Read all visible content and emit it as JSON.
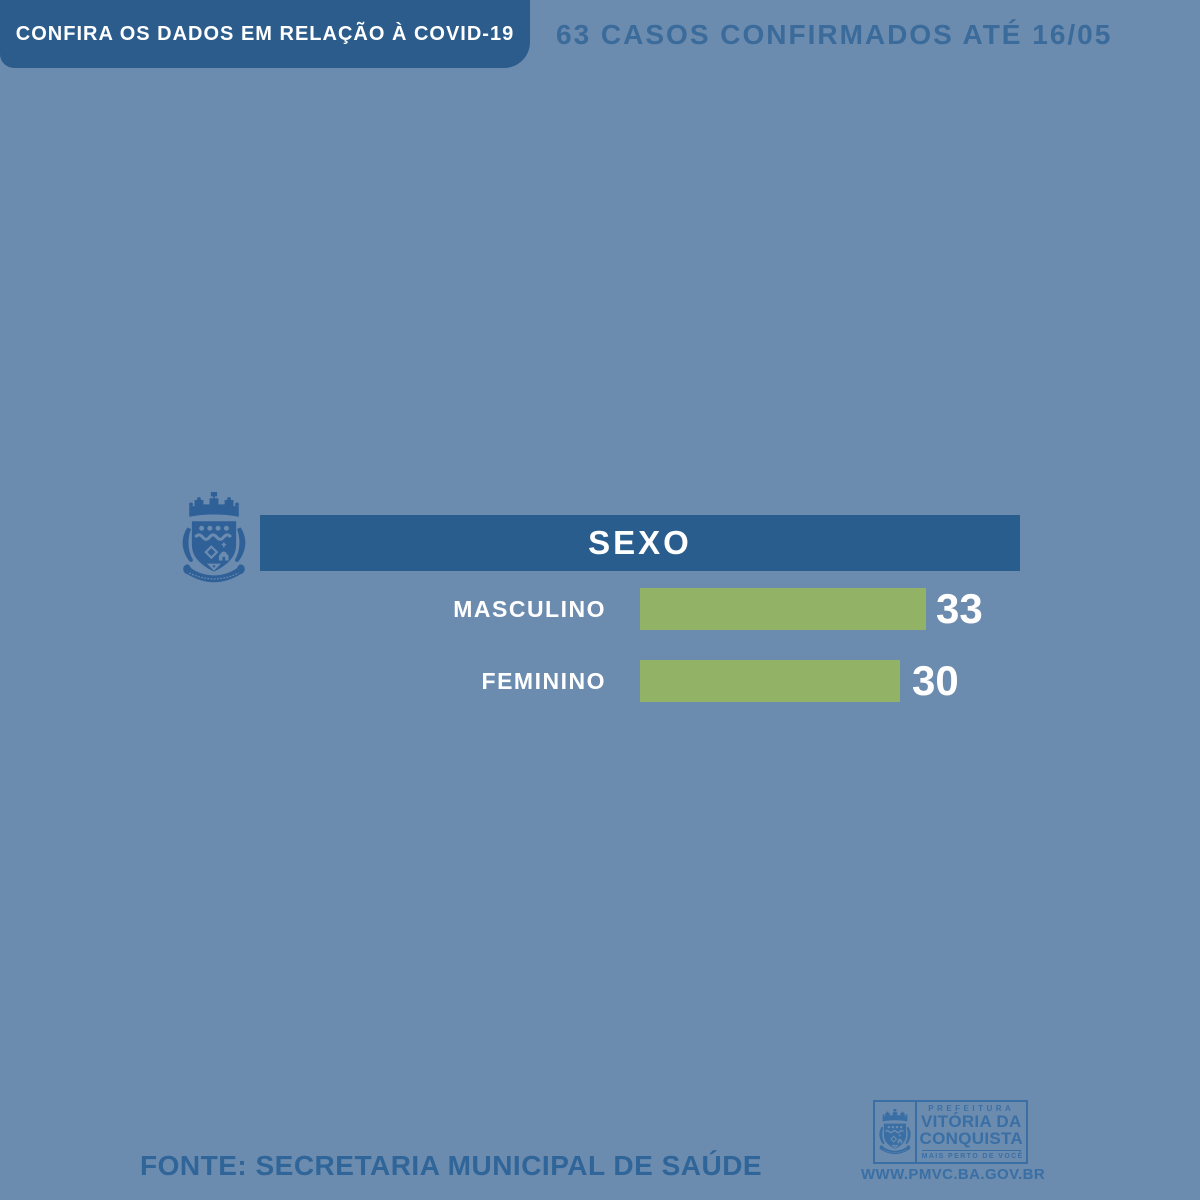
{
  "page": {
    "background_color": "#6B8BAF"
  },
  "header": {
    "banner_label": "CONFIRA OS DADOS EM RELAÇÃO À COVID-19",
    "banner_bg": "#2B5C8C",
    "cases_summary": "63 CASOS CONFIRMADOS ATÉ 16/05",
    "cases_color": "#3A6B9A"
  },
  "chart_data": {
    "type": "bar",
    "orientation": "horizontal",
    "title": "SEXO",
    "categories": [
      "MASCULINO",
      "FEMININO"
    ],
    "values": [
      33,
      30
    ],
    "total_cases": 63,
    "xlim": [
      0,
      33
    ],
    "bar_color": "#92B365",
    "header_bg": "#295D8E",
    "label_color": "#FFFFFF",
    "value_color": "#FFFFFF",
    "grid": false,
    "legend": "none"
  },
  "footer": {
    "source": "FONTE: SECRETARIA MUNICIPAL DE SAÚDE",
    "logo": {
      "line1": "PREFEITURA",
      "line2": "VITÓRIA DA",
      "line3": "CONQUISTA",
      "tagline": "MAIS PERTO DE VOCÊ",
      "website": "WWW.PMVC.BA.GOV.BR"
    }
  },
  "icons": {
    "crest": "vitoria-da-conquista-coat-of-arms-icon"
  }
}
